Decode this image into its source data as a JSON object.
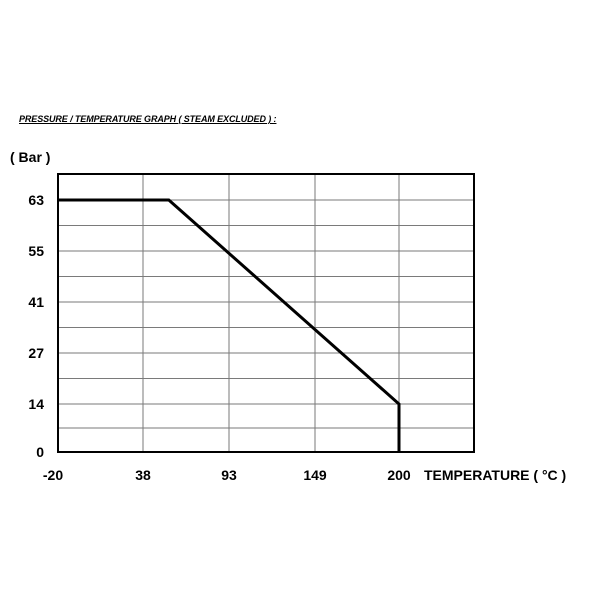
{
  "chart_data": {
    "type": "line",
    "title": "PRESSURE / TEMPERATURE GRAPH ( STEAM EXCLUDED ) :",
    "xlabel": "TEMPERATURE ( °C )",
    "ylabel": "( Bar )",
    "x_ticks": [
      "-20",
      "38",
      "93",
      "149",
      "200"
    ],
    "y_ticks": [
      "63",
      "55",
      "41",
      "27",
      "14",
      "0"
    ],
    "series": [
      {
        "points_by_tick": [
          [
            -0.05,
            63
          ],
          [
            1.3,
            63
          ],
          [
            4,
            14
          ],
          [
            4,
            0
          ]
        ]
      }
    ],
    "grid": true
  }
}
